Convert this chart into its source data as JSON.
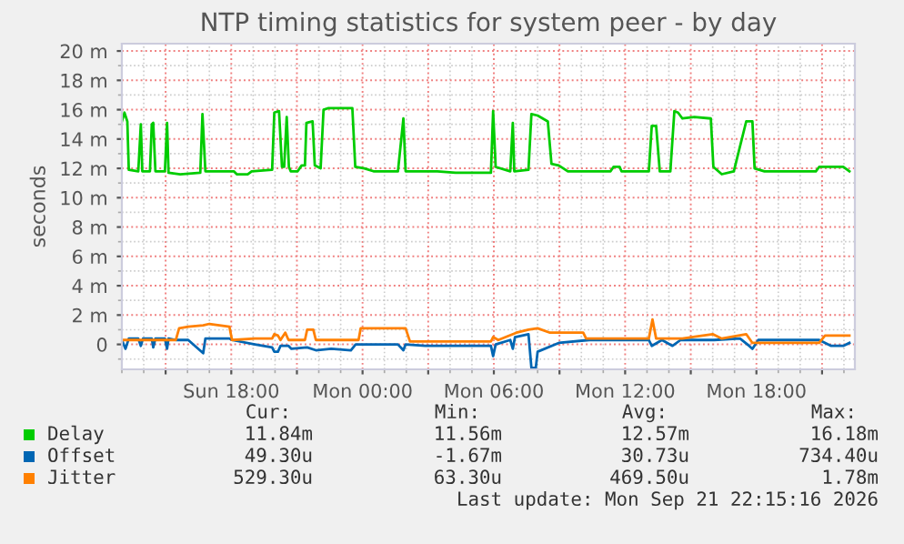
{
  "chart_data": {
    "type": "line",
    "title": "NTP timing statistics for system peer - by day",
    "ylabel": "seconds",
    "xlim": [
      "2026-09-20T13:00",
      "2026-09-21T22:30"
    ],
    "ylim": [
      -1.7,
      20.5
    ],
    "xticks": [
      {
        "value": "2026-09-20T15:00",
        "label": null
      },
      {
        "value": "2026-09-20T18:00",
        "label": "Sun 18:00"
      },
      {
        "value": "2026-09-20T21:00",
        "label": null
      },
      {
        "value": "2026-09-21T00:00",
        "label": "Mon 00:00"
      },
      {
        "value": "2026-09-21T03:00",
        "label": null
      },
      {
        "value": "2026-09-21T06:00",
        "label": "Mon 06:00"
      },
      {
        "value": "2026-09-21T09:00",
        "label": null
      },
      {
        "value": "2026-09-21T12:00",
        "label": "Mon 12:00"
      },
      {
        "value": "2026-09-21T15:00",
        "label": null
      },
      {
        "value": "2026-09-21T18:00",
        "label": "Mon 18:00"
      },
      {
        "value": "2026-09-21T21:00",
        "label": null
      }
    ],
    "yticks": [
      {
        "value": 0,
        "label": "0"
      },
      {
        "value": 2,
        "label": "2 m"
      },
      {
        "value": 4,
        "label": "4 m"
      },
      {
        "value": 6,
        "label": "6 m"
      },
      {
        "value": 8,
        "label": "8 m"
      },
      {
        "value": 10,
        "label": "10 m"
      },
      {
        "value": 12,
        "label": "12 m"
      },
      {
        "value": 14,
        "label": "14 m"
      },
      {
        "value": 16,
        "label": "16 m"
      },
      {
        "value": 18,
        "label": "18 m"
      },
      {
        "value": 20,
        "label": "20 m"
      }
    ],
    "grid": true,
    "legend": "bottom",
    "marker": "none",
    "line_style": "solid",
    "series": [
      {
        "name": "Delay",
        "color": "#00cc00",
        "x": [
          "2026-09-20T13:00",
          "2026-09-20T13:07",
          "2026-09-20T13:15",
          "2026-09-20T13:19",
          "2026-09-20T13:45",
          "2026-09-20T13:52",
          "2026-09-20T13:56",
          "2026-09-20T14:17",
          "2026-09-20T14:22",
          "2026-09-20T14:26",
          "2026-09-20T14:32",
          "2026-09-20T14:58",
          "2026-09-20T15:04",
          "2026-09-20T15:08",
          "2026-09-20T15:40",
          "2026-09-20T16:35",
          "2026-09-20T16:41",
          "2026-09-20T16:49",
          "2026-09-20T18:07",
          "2026-09-20T18:15",
          "2026-09-20T18:45",
          "2026-09-20T18:56",
          "2026-09-20T19:52",
          "2026-09-20T19:58",
          "2026-09-20T20:11",
          "2026-09-20T20:19",
          "2026-09-20T20:25",
          "2026-09-20T20:32",
          "2026-09-20T20:38",
          "2026-09-20T20:43",
          "2026-09-20T21:02",
          "2026-09-20T21:13",
          "2026-09-20T21:22",
          "2026-09-20T21:26",
          "2026-09-20T21:43",
          "2026-09-20T21:49",
          "2026-09-20T22:05",
          "2026-09-20T22:13",
          "2026-09-20T22:25",
          "2026-09-20T23:32",
          "2026-09-20T23:40",
          "2026-09-21T00:05",
          "2026-09-21T00:30",
          "2026-09-21T01:37",
          "2026-09-21T01:52",
          "2026-09-21T01:58",
          "2026-09-21T03:25",
          "2026-09-21T04:15",
          "2026-09-21T05:52",
          "2026-09-21T05:58",
          "2026-09-21T06:05",
          "2026-09-21T06:45",
          "2026-09-21T06:52",
          "2026-09-21T06:56",
          "2026-09-21T07:35",
          "2026-09-21T07:43",
          "2026-09-21T08:00",
          "2026-09-21T08:28",
          "2026-09-21T08:38",
          "2026-09-21T08:58",
          "2026-09-21T09:23",
          "2026-09-21T11:20",
          "2026-09-21T11:28",
          "2026-09-21T11:45",
          "2026-09-21T11:50",
          "2026-09-21T13:05",
          "2026-09-21T13:13",
          "2026-09-21T13:25",
          "2026-09-21T13:35",
          "2026-09-21T14:04",
          "2026-09-21T14:15",
          "2026-09-21T14:25",
          "2026-09-21T14:37",
          "2026-09-21T15:10",
          "2026-09-21T15:55",
          "2026-09-21T16:02",
          "2026-09-21T16:25",
          "2026-09-21T16:58",
          "2026-09-21T17:32",
          "2026-09-21T17:49",
          "2026-09-21T17:55",
          "2026-09-21T18:22",
          "2026-09-21T20:43",
          "2026-09-21T20:52",
          "2026-09-21T21:58",
          "2026-09-21T22:15"
        ],
        "values": [
          15.2,
          15.8,
          15.2,
          11.9,
          11.8,
          15.0,
          11.8,
          11.8,
          15.0,
          15.1,
          11.8,
          11.8,
          15.1,
          11.7,
          11.6,
          11.7,
          15.7,
          11.8,
          11.8,
          11.6,
          11.6,
          11.8,
          11.9,
          15.8,
          15.9,
          12.1,
          12.1,
          15.5,
          12.1,
          11.8,
          11.8,
          12.2,
          12.2,
          15.1,
          15.2,
          12.2,
          12.0,
          16.0,
          16.1,
          16.1,
          12.1,
          12.0,
          11.8,
          11.8,
          15.4,
          11.8,
          11.8,
          11.7,
          11.7,
          15.9,
          12.1,
          11.8,
          15.1,
          11.8,
          11.9,
          15.7,
          15.6,
          15.2,
          12.3,
          12.2,
          11.8,
          11.8,
          12.1,
          12.1,
          11.8,
          11.8,
          14.9,
          14.9,
          11.8,
          11.8,
          15.9,
          15.8,
          15.4,
          15.5,
          15.4,
          12.1,
          11.6,
          11.8,
          15.2,
          15.2,
          12.0,
          11.8,
          11.8,
          12.1,
          12.1,
          11.8
        ]
      },
      {
        "name": "Offset",
        "color": "#0066b3",
        "x": [
          "2026-09-20T13:00",
          "2026-09-20T13:10",
          "2026-09-20T13:19",
          "2026-09-20T13:45",
          "2026-09-20T13:52",
          "2026-09-20T13:58",
          "2026-09-20T14:22",
          "2026-09-20T14:26",
          "2026-09-20T14:32",
          "2026-09-20T14:58",
          "2026-09-20T15:04",
          "2026-09-20T15:08",
          "2026-09-20T15:28",
          "2026-09-20T16:02",
          "2026-09-20T16:43",
          "2026-09-20T16:49",
          "2026-09-20T17:55",
          "2026-09-20T18:02",
          "2026-09-20T19:05",
          "2026-09-20T19:52",
          "2026-09-20T19:58",
          "2026-09-20T20:08",
          "2026-09-20T20:15",
          "2026-09-20T20:37",
          "2026-09-20T20:45",
          "2026-09-20T21:28",
          "2026-09-20T21:52",
          "2026-09-20T22:34",
          "2026-09-20T23:28",
          "2026-09-20T23:41",
          "2026-09-21T01:37",
          "2026-09-21T01:52",
          "2026-09-21T01:58",
          "2026-09-21T02:52",
          "2026-09-21T04:15",
          "2026-09-21T05:52",
          "2026-09-21T05:58",
          "2026-09-21T06:05",
          "2026-09-21T06:45",
          "2026-09-21T06:52",
          "2026-09-21T06:58",
          "2026-09-21T07:35",
          "2026-09-21T07:43",
          "2026-09-21T07:55",
          "2026-09-21T08:00",
          "2026-09-21T08:58",
          "2026-09-21T10:22",
          "2026-09-21T13:05",
          "2026-09-21T13:13",
          "2026-09-21T13:41",
          "2026-09-21T14:10",
          "2026-09-21T14:32",
          "2026-09-21T16:04",
          "2026-09-21T17:15",
          "2026-09-21T17:40",
          "2026-09-21T17:49",
          "2026-09-21T18:05",
          "2026-09-21T20:52",
          "2026-09-21T21:25",
          "2026-09-21T21:58",
          "2026-09-21T22:15"
        ],
        "values": [
          0.3,
          -0.3,
          0.4,
          0.4,
          -0.1,
          0.4,
          0.4,
          -0.2,
          0.4,
          0.4,
          -0.3,
          0.4,
          0.3,
          0.3,
          -0.6,
          0.4,
          0.4,
          0.3,
          0.0,
          -0.2,
          -0.5,
          -0.5,
          -0.1,
          -0.1,
          -0.3,
          -0.2,
          -0.4,
          -0.3,
          -0.4,
          0.0,
          0.0,
          -0.4,
          0.0,
          -0.1,
          -0.1,
          -0.1,
          -0.8,
          0.0,
          0.3,
          -0.3,
          0.5,
          0.7,
          -1.6,
          -1.6,
          -0.5,
          0.1,
          0.3,
          0.3,
          -0.1,
          0.3,
          -0.1,
          0.3,
          0.3,
          0.4,
          -0.1,
          -0.3,
          0.3,
          0.3,
          -0.1,
          -0.1,
          0.1
        ]
      },
      {
        "name": "Jitter",
        "color": "#ff8000",
        "x": [
          "2026-09-20T13:00",
          "2026-09-20T15:28",
          "2026-09-20T15:37",
          "2026-09-20T16:02",
          "2026-09-20T16:43",
          "2026-09-20T17:00",
          "2026-09-20T17:55",
          "2026-09-20T18:02",
          "2026-09-20T19:05",
          "2026-09-20T19:52",
          "2026-09-20T19:58",
          "2026-09-20T20:08",
          "2026-09-20T20:15",
          "2026-09-20T20:28",
          "2026-09-20T20:37",
          "2026-09-20T21:22",
          "2026-09-20T21:28",
          "2026-09-20T21:45",
          "2026-09-20T21:52",
          "2026-09-20T23:49",
          "2026-09-20T23:55",
          "2026-09-21T01:58",
          "2026-09-21T02:10",
          "2026-09-21T02:52",
          "2026-09-21T04:15",
          "2026-09-21T05:52",
          "2026-09-21T05:58",
          "2026-09-21T06:12",
          "2026-09-21T07:02",
          "2026-09-21T07:35",
          "2026-09-21T08:00",
          "2026-09-21T08:34",
          "2026-09-21T10:05",
          "2026-09-21T10:13",
          "2026-09-21T13:05",
          "2026-09-21T13:15",
          "2026-09-21T13:25",
          "2026-09-21T14:37",
          "2026-09-21T16:00",
          "2026-09-21T16:25",
          "2026-09-21T17:32",
          "2026-09-21T17:49",
          "2026-09-21T20:52",
          "2026-09-21T21:08",
          "2026-09-21T22:15"
        ],
        "values": [
          0.3,
          0.3,
          1.1,
          1.2,
          1.3,
          1.4,
          1.2,
          0.3,
          0.4,
          0.4,
          0.7,
          0.6,
          0.3,
          0.8,
          0.3,
          0.3,
          1.0,
          1.0,
          0.3,
          0.3,
          1.1,
          1.1,
          0.2,
          0.2,
          0.2,
          0.2,
          0.5,
          0.3,
          0.8,
          1.0,
          1.1,
          0.8,
          0.8,
          0.4,
          0.4,
          1.7,
          0.4,
          0.4,
          0.7,
          0.4,
          0.7,
          0.1,
          0.1,
          0.6,
          0.6
        ]
      }
    ],
    "annotations": [
      "Cur:",
      "Min:",
      "Avg:",
      "Max:",
      "11.84m",
      "11.56m",
      "12.57m",
      "16.18m",
      "49.30u",
      "-1.67m",
      "30.73u",
      "734.40u",
      "529.30u",
      "63.30u",
      "469.50u",
      "1.78m",
      "Last update: Mon Sep 21 22:15:16 2026"
    ]
  }
}
